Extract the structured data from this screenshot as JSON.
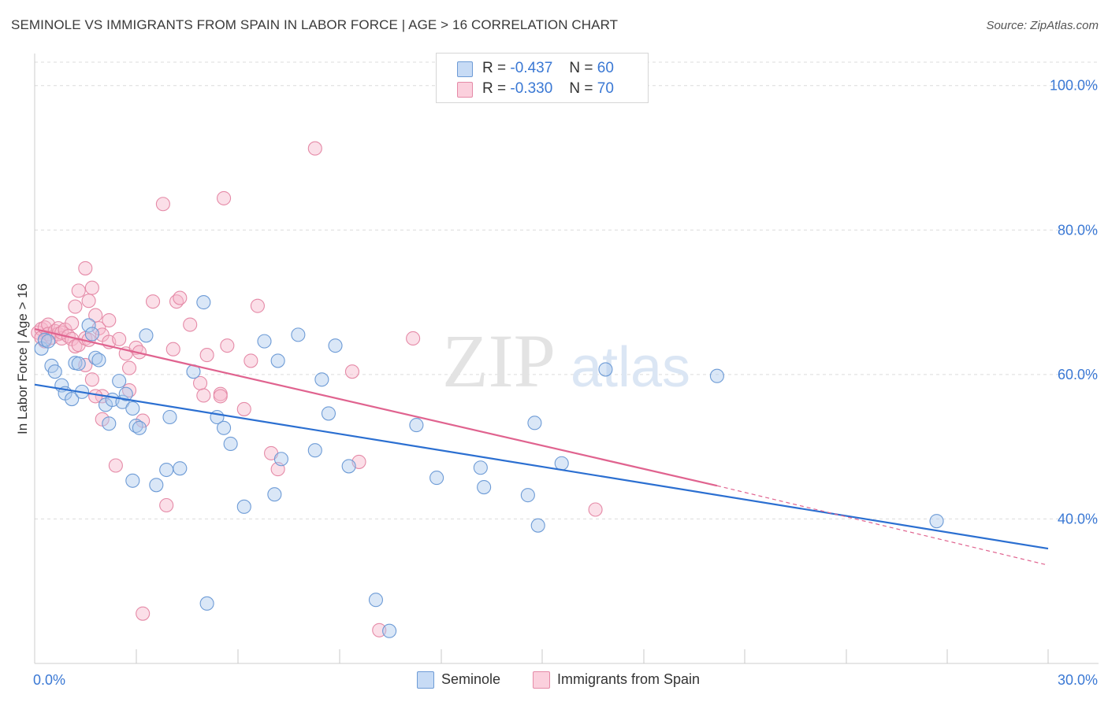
{
  "title": "SEMINOLE VS IMMIGRANTS FROM SPAIN IN LABOR FORCE | AGE > 16 CORRELATION CHART",
  "source": "Source: ZipAtlas.com",
  "watermark": {
    "zip": "ZIP",
    "atlas": "atlas"
  },
  "legend_top": [
    {
      "r_label": "R =",
      "r_value": "-0.437",
      "n_label": "N =",
      "n_value": "60"
    },
    {
      "r_label": "R =",
      "r_value": "-0.330",
      "n_label": "N =",
      "n_value": "70"
    }
  ],
  "legend_bottom": [
    "Seminole",
    "Immigrants from Spain"
  ],
  "colors": {
    "seminole_fill": "#aec9ee",
    "seminole_stroke": "#6d9bd6",
    "seminole_line": "#2b6fd1",
    "spain_fill": "#f6b7cb",
    "spain_stroke": "#e58aa7",
    "spain_line": "#e0638f",
    "tick_label": "#3a78d4",
    "grid": "#dcdcdc"
  },
  "chart_data": {
    "type": "scatter",
    "title": "SEMINOLE VS IMMIGRANTS FROM SPAIN IN LABOR FORCE | AGE > 16 CORRELATION CHART",
    "xlabel": "",
    "ylabel": "In Labor Force | Age > 16",
    "xlim": [
      0,
      30
    ],
    "ylim": [
      20,
      104
    ],
    "x_tick_labels": [
      {
        "value": 0,
        "label": "0.0%"
      },
      {
        "value": 30,
        "label": "30.0%"
      }
    ],
    "y_tick_labels": [
      {
        "value": 100,
        "label": "100.0%"
      },
      {
        "value": 80,
        "label": "80.0%"
      },
      {
        "value": 60,
        "label": "60.0%"
      },
      {
        "value": 40,
        "label": "40.0%"
      }
    ],
    "grid": true,
    "legend_position": "top-center",
    "series": [
      {
        "name": "Seminole",
        "r": -0.437,
        "n": 60,
        "trend": {
          "x0": 0,
          "y0": 58.6,
          "x1": 30,
          "y1": 35.9
        },
        "points": [
          [
            0.2,
            63.6
          ],
          [
            0.3,
            64.8
          ],
          [
            0.5,
            61.2
          ],
          [
            0.6,
            60.4
          ],
          [
            0.8,
            58.5
          ],
          [
            0.9,
            57.4
          ],
          [
            1.1,
            56.6
          ],
          [
            1.2,
            61.6
          ],
          [
            1.3,
            61.5
          ],
          [
            1.4,
            57.6
          ],
          [
            1.6,
            66.8
          ],
          [
            1.7,
            65.6
          ],
          [
            1.8,
            62.3
          ],
          [
            1.9,
            62.0
          ],
          [
            2.1,
            55.8
          ],
          [
            2.2,
            53.2
          ],
          [
            2.3,
            56.5
          ],
          [
            2.5,
            59.1
          ],
          [
            2.6,
            56.2
          ],
          [
            2.7,
            57.3
          ],
          [
            2.9,
            55.3
          ],
          [
            3.0,
            52.9
          ],
          [
            3.1,
            52.6
          ],
          [
            3.3,
            65.4
          ],
          [
            2.9,
            45.3
          ],
          [
            3.6,
            44.7
          ],
          [
            3.9,
            46.8
          ],
          [
            4.0,
            54.1
          ],
          [
            4.3,
            47.0
          ],
          [
            4.7,
            60.4
          ],
          [
            5.0,
            70.0
          ],
          [
            5.4,
            54.1
          ],
          [
            5.6,
            52.6
          ],
          [
            5.8,
            50.4
          ],
          [
            6.2,
            41.7
          ],
          [
            6.8,
            64.6
          ],
          [
            7.1,
            43.4
          ],
          [
            7.2,
            61.9
          ],
          [
            7.3,
            48.3
          ],
          [
            7.8,
            65.5
          ],
          [
            8.3,
            49.5
          ],
          [
            8.5,
            59.3
          ],
          [
            8.7,
            54.6
          ],
          [
            8.9,
            64.0
          ],
          [
            9.3,
            47.3
          ],
          [
            10.1,
            28.8
          ],
          [
            10.5,
            24.5
          ],
          [
            11.3,
            53.0
          ],
          [
            11.9,
            45.7
          ],
          [
            13.2,
            47.1
          ],
          [
            13.3,
            44.4
          ],
          [
            14.6,
            43.3
          ],
          [
            14.8,
            53.3
          ],
          [
            14.9,
            39.1
          ],
          [
            15.6,
            47.7
          ],
          [
            16.9,
            60.7
          ],
          [
            20.2,
            59.8
          ],
          [
            26.7,
            39.7
          ],
          [
            5.1,
            28.3
          ],
          [
            0.4,
            64.6
          ]
        ]
      },
      {
        "name": "Immigrants from Spain",
        "r": -0.33,
        "n": 70,
        "trend_solid": {
          "x0": 0,
          "y0": 66.3,
          "x1": 20.2,
          "y1": 44.6
        },
        "trend_dashed": {
          "x0": 20.2,
          "y0": 44.6,
          "x1": 30,
          "y1": 33.6
        },
        "points": [
          [
            0.1,
            65.8
          ],
          [
            0.2,
            66.3
          ],
          [
            0.2,
            65.1
          ],
          [
            0.3,
            66.5
          ],
          [
            0.3,
            64.6
          ],
          [
            0.4,
            66.9
          ],
          [
            0.4,
            65.6
          ],
          [
            0.5,
            65.1
          ],
          [
            0.6,
            66.0
          ],
          [
            0.7,
            65.6
          ],
          [
            0.7,
            66.4
          ],
          [
            0.8,
            65.0
          ],
          [
            0.8,
            65.8
          ],
          [
            0.9,
            66.2
          ],
          [
            1.0,
            65.3
          ],
          [
            1.1,
            64.9
          ],
          [
            1.1,
            67.1
          ],
          [
            1.2,
            69.4
          ],
          [
            1.2,
            63.9
          ],
          [
            1.3,
            64.1
          ],
          [
            1.3,
            71.6
          ],
          [
            1.5,
            65.0
          ],
          [
            1.5,
            61.3
          ],
          [
            1.5,
            74.7
          ],
          [
            1.6,
            70.2
          ],
          [
            1.6,
            64.8
          ],
          [
            1.7,
            59.3
          ],
          [
            1.7,
            72.0
          ],
          [
            1.8,
            68.2
          ],
          [
            1.9,
            66.4
          ],
          [
            2.0,
            57.0
          ],
          [
            2.0,
            65.5
          ],
          [
            2.0,
            53.8
          ],
          [
            2.2,
            67.5
          ],
          [
            2.2,
            64.5
          ],
          [
            2.4,
            47.4
          ],
          [
            2.5,
            64.9
          ],
          [
            2.7,
            62.9
          ],
          [
            2.8,
            60.9
          ],
          [
            2.8,
            57.8
          ],
          [
            3.0,
            63.7
          ],
          [
            3.1,
            63.1
          ],
          [
            3.2,
            53.6
          ],
          [
            3.5,
            70.1
          ],
          [
            3.8,
            83.6
          ],
          [
            3.9,
            41.9
          ],
          [
            4.1,
            63.5
          ],
          [
            4.2,
            70.1
          ],
          [
            4.3,
            70.6
          ],
          [
            4.6,
            66.9
          ],
          [
            4.9,
            58.8
          ],
          [
            5.0,
            57.1
          ],
          [
            5.1,
            62.7
          ],
          [
            5.5,
            57.3
          ],
          [
            5.5,
            57.0
          ],
          [
            5.6,
            84.4
          ],
          [
            5.7,
            64.0
          ],
          [
            6.2,
            55.2
          ],
          [
            6.4,
            61.9
          ],
          [
            6.6,
            69.5
          ],
          [
            7.0,
            49.1
          ],
          [
            7.2,
            46.9
          ],
          [
            8.3,
            91.3
          ],
          [
            9.4,
            60.4
          ],
          [
            9.6,
            47.9
          ],
          [
            10.2,
            24.6
          ],
          [
            11.2,
            65.0
          ],
          [
            3.2,
            26.9
          ],
          [
            16.6,
            41.3
          ],
          [
            1.8,
            57.0
          ]
        ]
      }
    ]
  }
}
